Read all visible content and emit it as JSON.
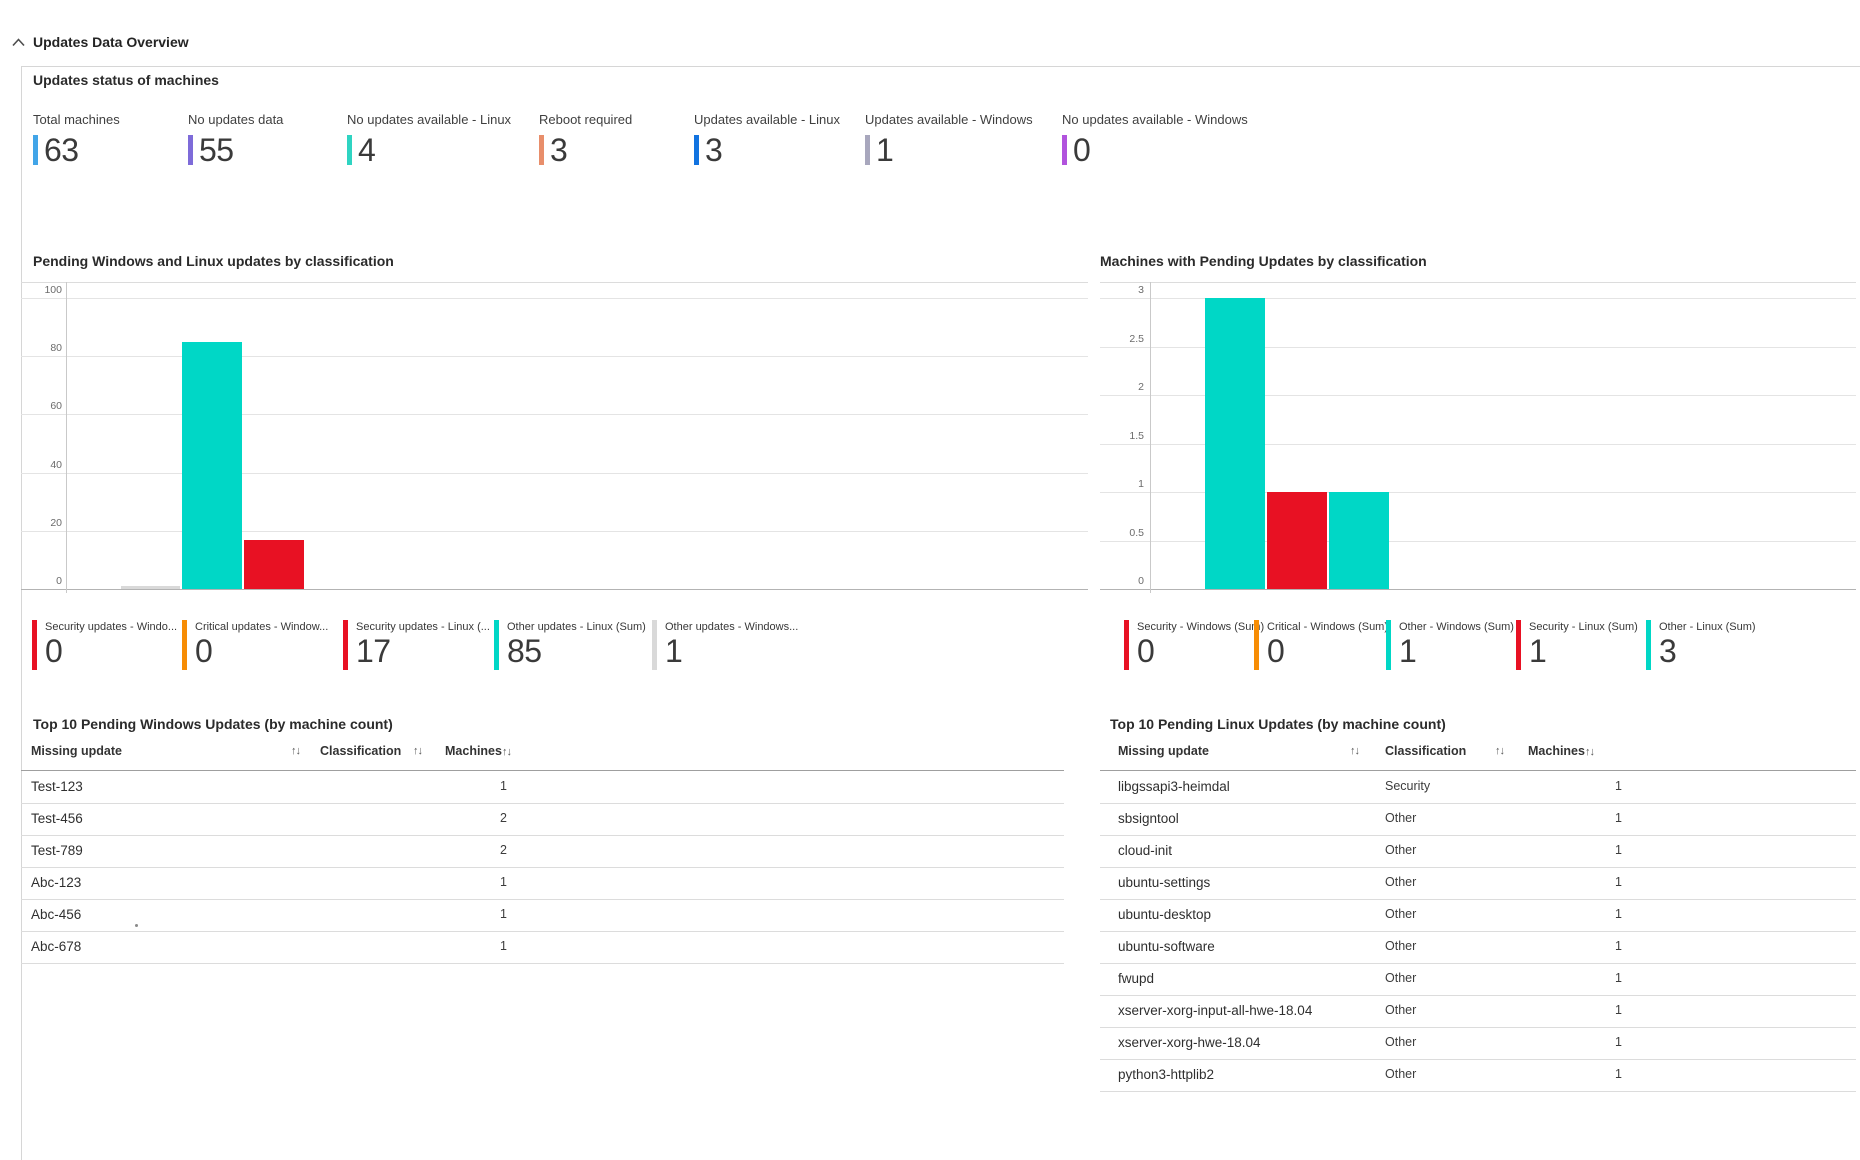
{
  "header": {
    "title": "Updates Data Overview"
  },
  "status_section": {
    "title": "Updates status of machines",
    "tiles": [
      {
        "label": "Total machines",
        "value": "63",
        "color": "#42a5e8"
      },
      {
        "label": "No updates data",
        "value": "55",
        "color": "#7e6bd9"
      },
      {
        "label": "No updates available - Linux",
        "value": "4",
        "color": "#2fd4c2"
      },
      {
        "label": "Reboot required",
        "value": "3",
        "color": "#e88e6b"
      },
      {
        "label": "Updates available - Linux",
        "value": "3",
        "color": "#1173e0"
      },
      {
        "label": "Updates available - Windows",
        "value": "1",
        "color": "#a8a7bd"
      },
      {
        "label": "No updates available - Windows",
        "value": "0",
        "color": "#b153dd"
      }
    ]
  },
  "chart_data": [
    {
      "type": "bar",
      "title": "Pending Windows and Linux updates by classification",
      "categories": [
        "Other updates - Windows",
        "Other updates - Linux",
        "Security updates - Linux"
      ],
      "values": [
        1,
        85,
        17
      ],
      "colors": [
        "#d9d9d9",
        "#00d7c6",
        "#e81123"
      ],
      "xlabel": "",
      "ylabel": "",
      "ylim": [
        0,
        100
      ],
      "yticks": [
        0,
        20,
        40,
        60,
        80,
        100
      ],
      "grid": true,
      "legend": "none"
    },
    {
      "type": "bar",
      "title": "Machines with Pending Updates by classification",
      "categories": [
        "Other - Linux",
        "Security - Linux",
        "Other - Windows"
      ],
      "values": [
        3,
        1,
        1
      ],
      "colors": [
        "#00d7c6",
        "#e81123",
        "#00d7c6"
      ],
      "xlabel": "",
      "ylabel": "",
      "ylim": [
        0,
        3
      ],
      "yticks": [
        0,
        0.5,
        1,
        1.5,
        2,
        2.5,
        3
      ],
      "grid": true,
      "legend": "none"
    }
  ],
  "chart_kpis": {
    "left": [
      {
        "label": "Security updates - Windo...",
        "value": "0",
        "color": "#e81123"
      },
      {
        "label": "Critical updates - Window...",
        "value": "0",
        "color": "#f78d05"
      },
      {
        "label": "Security updates - Linux (...",
        "value": "17",
        "color": "#e81123"
      },
      {
        "label": "Other updates - Linux (Sum)",
        "value": "85",
        "color": "#00d7c6"
      },
      {
        "label": "Other updates - Windows...",
        "value": "1",
        "color": "#d9d9d9"
      }
    ],
    "right": [
      {
        "label": "Security - Windows (Sum)",
        "value": "0",
        "color": "#e81123"
      },
      {
        "label": "Critical - Windows (Sum)",
        "value": "0",
        "color": "#f78d05"
      },
      {
        "label": "Other - Windows (Sum)",
        "value": "1",
        "color": "#00d7c6"
      },
      {
        "label": "Security - Linux (Sum)",
        "value": "1",
        "color": "#e81123"
      },
      {
        "label": "Other - Linux (Sum)",
        "value": "3",
        "color": "#00d7c6"
      }
    ]
  },
  "tables": {
    "sort_icon": "↑↓",
    "columns": [
      "Missing update",
      "Classification",
      "Machines"
    ],
    "windows": {
      "title": "Top 10 Pending Windows Updates (by machine count)",
      "rows": [
        {
          "update": "Test-123",
          "classification": "",
          "machines": "1"
        },
        {
          "update": "Test-456",
          "classification": "",
          "machines": "2"
        },
        {
          "update": "Test-789",
          "classification": "",
          "machines": "2"
        },
        {
          "update": "Abc-123",
          "classification": "",
          "machines": "1"
        },
        {
          "update": "Abc-456",
          "classification": "",
          "machines": "1"
        },
        {
          "update": "Abc-678",
          "classification": "",
          "machines": "1"
        }
      ]
    },
    "linux": {
      "title": "Top 10 Pending Linux Updates (by machine count)",
      "rows": [
        {
          "update": "libgssapi3-heimdal",
          "classification": "Security",
          "machines": "1"
        },
        {
          "update": "sbsigntool",
          "classification": "Other",
          "machines": "1"
        },
        {
          "update": "cloud-init",
          "classification": "Other",
          "machines": "1"
        },
        {
          "update": "ubuntu-settings",
          "classification": "Other",
          "machines": "1"
        },
        {
          "update": "ubuntu-desktop",
          "classification": "Other",
          "machines": "1"
        },
        {
          "update": "ubuntu-software",
          "classification": "Other",
          "machines": "1"
        },
        {
          "update": "fwupd",
          "classification": "Other",
          "machines": "1"
        },
        {
          "update": "xserver-xorg-input-all-hwe-18.04",
          "classification": "Other",
          "machines": "1"
        },
        {
          "update": "xserver-xorg-hwe-18.04",
          "classification": "Other",
          "machines": "1"
        },
        {
          "update": "python3-httplib2",
          "classification": "Other",
          "machines": "1"
        }
      ]
    }
  }
}
